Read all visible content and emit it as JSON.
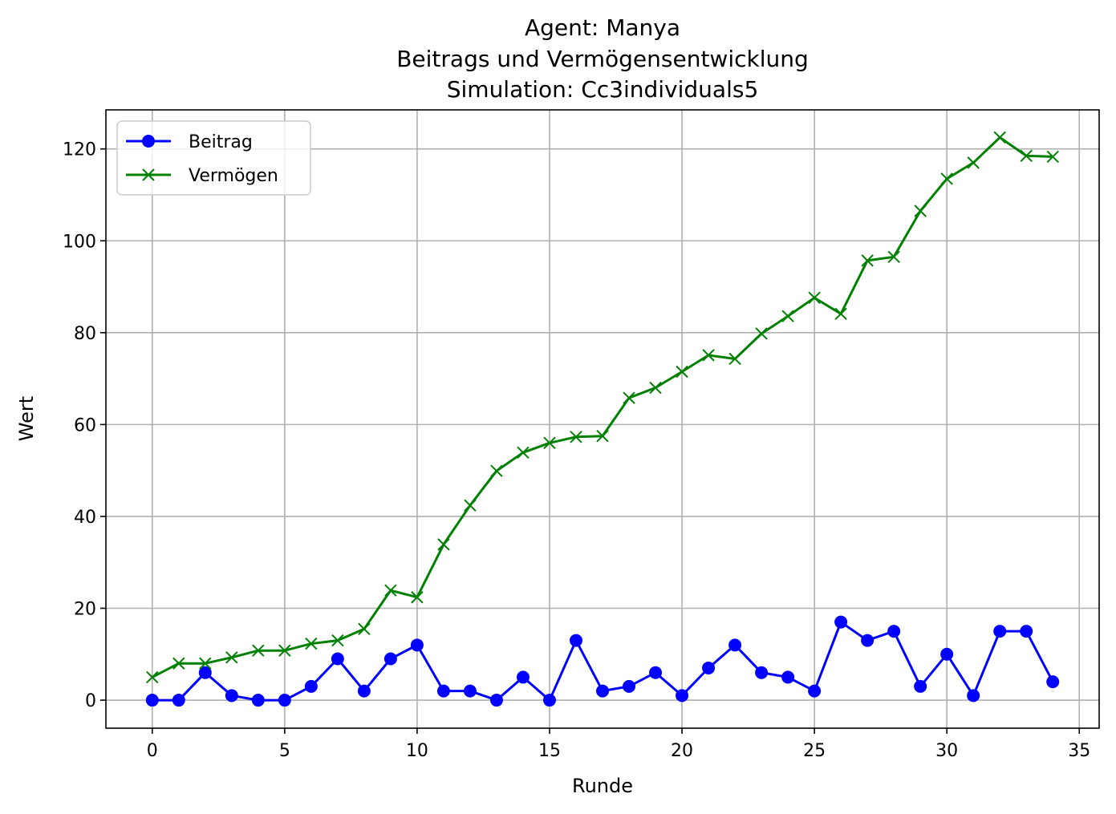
{
  "chart_data": {
    "type": "line",
    "title": [
      "Agent: Manya",
      "Beitrags und Vermögensentwicklung",
      "Simulation: Cc3individuals5"
    ],
    "xlabel": "Runde",
    "ylabel": "Wert",
    "xlim": [
      -1.75,
      35.75
    ],
    "ylim": [
      -6.1,
      128.5
    ],
    "xticks": [
      0,
      5,
      10,
      15,
      20,
      25,
      30,
      35
    ],
    "yticks": [
      0,
      20,
      40,
      60,
      80,
      100,
      120
    ],
    "grid": true,
    "legend_position": "top-left",
    "x": [
      0,
      1,
      2,
      3,
      4,
      5,
      6,
      7,
      8,
      9,
      10,
      11,
      12,
      13,
      14,
      15,
      16,
      17,
      18,
      19,
      20,
      21,
      22,
      23,
      24,
      25,
      26,
      27,
      28,
      29,
      30,
      31,
      32,
      33,
      34
    ],
    "series": [
      {
        "name": "Beitrag",
        "color": "#0000ff",
        "marker": "circle",
        "values": [
          0,
          0,
          6,
          1,
          0,
          0,
          3,
          9,
          2,
          9,
          12,
          2,
          2,
          0,
          5,
          0,
          13,
          2,
          3,
          6,
          1,
          7,
          12,
          6,
          5,
          2,
          17,
          13,
          15,
          3,
          10,
          1,
          15,
          15,
          4
        ]
      },
      {
        "name": "Vermögen",
        "color": "#008000",
        "marker": "x",
        "values": [
          5,
          8,
          8,
          9.3,
          10.8,
          10.8,
          12.3,
          13,
          15.5,
          23.9,
          22.4,
          33.9,
          42.4,
          49.9,
          53.9,
          56,
          57.3,
          57.5,
          65.8,
          68,
          71.5,
          75.1,
          74.3,
          79.8,
          83.6,
          87.6,
          84.1,
          95.7,
          96.5,
          106.5,
          113.5,
          117,
          122.5,
          118.5,
          118.3
        ]
      }
    ]
  }
}
